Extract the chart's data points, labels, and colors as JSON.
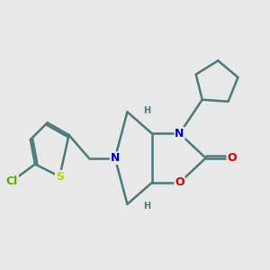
{
  "background_color": "#e8e8e8",
  "bond_color": "#4a7a7a",
  "bond_width": 1.8,
  "atom_colors": {
    "N": "#0000cc",
    "O": "#cc0000",
    "S": "#cccc00",
    "Cl": "#55aa00",
    "C": "#4a7a7a",
    "H": "#4a7a7a"
  },
  "figsize": [
    3.0,
    3.0
  ],
  "dpi": 100
}
